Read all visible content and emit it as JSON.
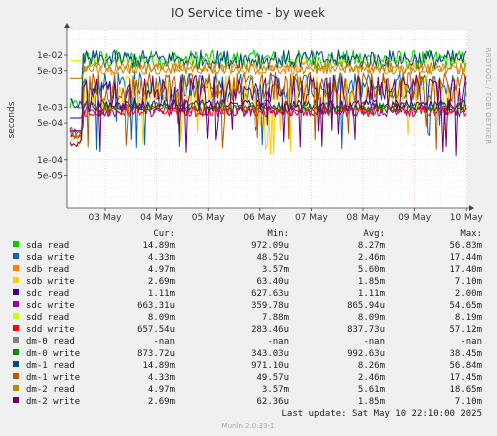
{
  "chart_data": {
    "type": "line",
    "title": "IO Service time - by week",
    "ylabel": "seconds",
    "y_scale": "log",
    "ylim": [
      1.2e-05,
      0.03
    ],
    "y_ticks": [
      {
        "value": 5e-05,
        "label": "5e-05"
      },
      {
        "value": 0.0001,
        "label": "1e-04"
      },
      {
        "value": 0.0005,
        "label": "5e-04"
      },
      {
        "value": 0.001,
        "label": "1e-03"
      },
      {
        "value": 0.005,
        "label": "5e-03"
      },
      {
        "value": 0.01,
        "label": "1e-02"
      }
    ],
    "x_ticks": [
      "03 May",
      "04 May",
      "05 May",
      "06 May",
      "07 May",
      "08 May",
      "09 May",
      "10 May"
    ],
    "side_label": "RRDTOOL / TOBI OETIKER",
    "legend_headers": {
      "cur": "Cur:",
      "min": "Min:",
      "avg": "Avg:",
      "max": "Max:"
    },
    "series": [
      {
        "name": "sda read",
        "color": "#00cc00",
        "cur": "14.89m",
        "min": "972.09u",
        "avg": "8.27m",
        "max": "56.83m"
      },
      {
        "name": "sda write",
        "color": "#0066b3",
        "cur": "4.33m",
        "min": "48.52u",
        "avg": "2.46m",
        "max": "17.44m"
      },
      {
        "name": "sdb read",
        "color": "#ff8000",
        "cur": "4.97m",
        "min": "3.57m",
        "avg": "5.60m",
        "max": "17.40m"
      },
      {
        "name": "sdb write",
        "color": "#ffcc00",
        "cur": "2.69m",
        "min": "63.40u",
        "avg": "1.85m",
        "max": "7.10m"
      },
      {
        "name": "sdc read",
        "color": "#330099",
        "cur": "1.11m",
        "min": "627.63u",
        "avg": "1.11m",
        "max": "2.00m"
      },
      {
        "name": "sdc write",
        "color": "#990099",
        "cur": "663.31u",
        "min": "359.78u",
        "avg": "865.94u",
        "max": "54.65m"
      },
      {
        "name": "sdd read",
        "color": "#ccff00",
        "cur": "8.09m",
        "min": "7.88m",
        "avg": "8.09m",
        "max": "8.19m"
      },
      {
        "name": "sdd write",
        "color": "#ff0000",
        "cur": "657.54u",
        "min": "283.46u",
        "avg": "837.73u",
        "max": "57.12m"
      },
      {
        "name": "dm-0 read",
        "color": "#808080",
        "cur": "-nan",
        "min": "-nan",
        "avg": "-nan",
        "max": "-nan"
      },
      {
        "name": "dm-0 write",
        "color": "#008f00",
        "cur": "873.72u",
        "min": "343.03u",
        "avg": "992.63u",
        "max": "38.45m"
      },
      {
        "name": "dm-1 read",
        "color": "#00487d",
        "cur": "14.89m",
        "min": "971.10u",
        "avg": "8.26m",
        "max": "56.84m"
      },
      {
        "name": "dm-1 write",
        "color": "#b35a00",
        "cur": "4.33m",
        "min": "49.57u",
        "avg": "2.46m",
        "max": "17.45m"
      },
      {
        "name": "dm-2 read",
        "color": "#b38f00",
        "cur": "4.97m",
        "min": "3.57m",
        "avg": "5.61m",
        "max": "18.65m"
      },
      {
        "name": "dm-2 write",
        "color": "#6b006b",
        "cur": "2.69m",
        "min": "62.36u",
        "avg": "1.85m",
        "max": "7.10m"
      }
    ],
    "last_update": "Last update:  Sat May 10 22:10:00 2025",
    "footer": "Munin 2.0.33-1"
  }
}
